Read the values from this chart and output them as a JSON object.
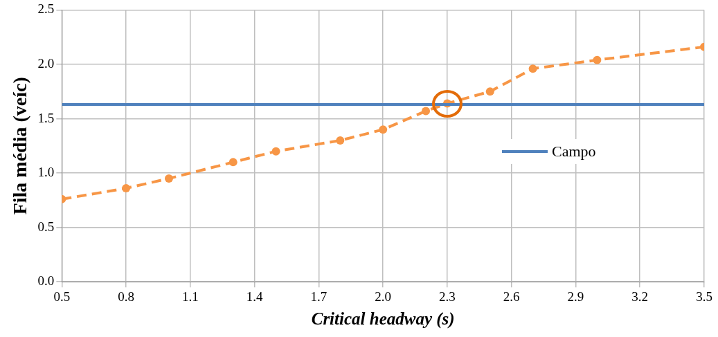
{
  "chart_data": {
    "type": "line",
    "xlabel": "Critical headway (s)",
    "ylabel": "Fila média (veíc)",
    "xlim": [
      0.5,
      3.5
    ],
    "xticks": [
      {
        "value": 0.5,
        "label": "0.5"
      },
      {
        "value": 0.8,
        "label": "0.8"
      },
      {
        "value": 1.1,
        "label": "1.1"
      },
      {
        "value": 1.4,
        "label": "1.4"
      },
      {
        "value": 1.7,
        "label": "1.7"
      },
      {
        "value": 2.0,
        "label": "2.0"
      },
      {
        "value": 2.3,
        "label": "2.3"
      },
      {
        "value": 2.6,
        "label": "2.6"
      },
      {
        "value": 2.9,
        "label": "2.9"
      },
      {
        "value": 3.2,
        "label": "3.2"
      },
      {
        "value": 3.5,
        "label": "3.5"
      }
    ],
    "ylim": [
      0,
      2.5
    ],
    "yticks": [
      {
        "value": 0,
        "label": "0.0"
      },
      {
        "value": 0.5,
        "label": "0.5"
      },
      {
        "value": 1.0,
        "label": "1.0"
      },
      {
        "value": 1.5,
        "label": "1.5"
      },
      {
        "value": 2.0,
        "label": "2.0"
      },
      {
        "value": 2.5,
        "label": "2.5"
      }
    ],
    "grid": true,
    "legend": "right",
    "series": [
      {
        "name": "Campo",
        "color": "#4f81bd",
        "x": [
          0.5,
          3.5
        ],
        "values": [
          1.63,
          1.63
        ],
        "marker": "none",
        "line_style": "solid"
      },
      {
        "color": "#f79646",
        "x": [
          0.5,
          0.8,
          1.0,
          1.3,
          1.5,
          1.8,
          2.0,
          2.2,
          2.3,
          2.5,
          2.7,
          3.0,
          3.5
        ],
        "values": [
          0.76,
          0.86,
          0.95,
          1.1,
          1.2,
          1.3,
          1.4,
          1.57,
          1.64,
          1.75,
          1.96,
          2.04,
          2.16
        ],
        "marker": "circle",
        "line_style": "dashed"
      }
    ]
  }
}
